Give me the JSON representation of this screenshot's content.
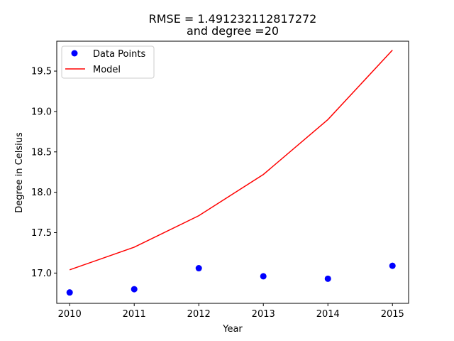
{
  "chart_data": {
    "type": "line",
    "title_line1": "RMSE = 1.491232112817272",
    "title_line2": "and degree =20",
    "xlabel": "Year",
    "ylabel": "Degree in Celsius",
    "xlim": [
      2009.8,
      2015.25
    ],
    "ylim": [
      16.625,
      19.87
    ],
    "x_ticks": [
      2010,
      2011,
      2012,
      2013,
      2014,
      2015
    ],
    "y_ticks": [
      17.0,
      17.5,
      18.0,
      18.5,
      19.0,
      19.5
    ],
    "y_tick_labels": [
      "17.0",
      "17.5",
      "18.0",
      "18.5",
      "19.0",
      "19.5"
    ],
    "grid": false,
    "legend_position": "top-left",
    "series": [
      {
        "name": "Data Points",
        "kind": "scatter",
        "color": "#0000ff",
        "x": [
          2010,
          2011,
          2012,
          2013,
          2014,
          2015
        ],
        "y": [
          16.76,
          16.8,
          17.06,
          16.96,
          16.93,
          17.09
        ]
      },
      {
        "name": "Model",
        "kind": "line",
        "color": "#ff0000",
        "x": [
          2010,
          2011,
          2012,
          2013,
          2014,
          2015
        ],
        "y": [
          17.04,
          17.32,
          17.71,
          18.22,
          18.9,
          19.76
        ]
      }
    ]
  }
}
